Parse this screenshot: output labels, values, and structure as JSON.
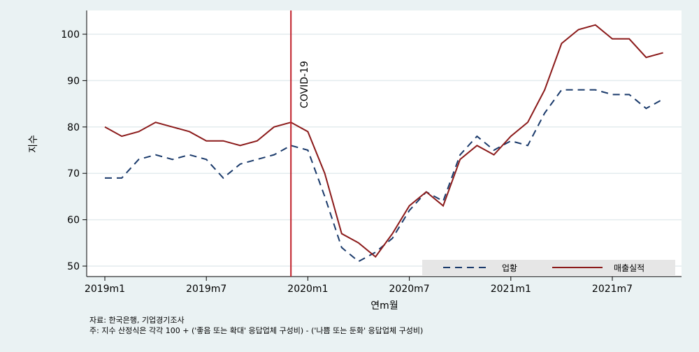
{
  "chart_data": {
    "type": "line",
    "xlabel": "연m월",
    "ylabel": "지수",
    "ylim": [
      48,
      104
    ],
    "yticks": [
      50,
      60,
      70,
      80,
      90,
      100
    ],
    "xtick_labels": [
      "2019m1",
      "2019m7",
      "2020m1",
      "2020m7",
      "2021m1",
      "2021m7"
    ],
    "x": [
      "2019m1",
      "2019m2",
      "2019m3",
      "2019m4",
      "2019m5",
      "2019m6",
      "2019m7",
      "2019m8",
      "2019m9",
      "2019m10",
      "2019m11",
      "2019m12",
      "2020m1",
      "2020m2",
      "2020m3",
      "2020m4",
      "2020m5",
      "2020m6",
      "2020m7",
      "2020m8",
      "2020m9",
      "2020m10",
      "2020m11",
      "2020m12",
      "2021m1",
      "2021m2",
      "2021m3",
      "2021m4",
      "2021m5",
      "2021m6",
      "2021m7",
      "2021m8",
      "2021m9",
      "2021m10"
    ],
    "series": [
      {
        "name": "업황",
        "color": "#1a3a6b",
        "dash": "dashed",
        "values": [
          69,
          69,
          73,
          74,
          73,
          74,
          73,
          69,
          72,
          73,
          74,
          76,
          75,
          65,
          54,
          51,
          53,
          56,
          62,
          66,
          64,
          74,
          78,
          75,
          77,
          76,
          83,
          88,
          88,
          88,
          87,
          87,
          84,
          86
        ]
      },
      {
        "name": "매출실적",
        "color": "#8b1a1a",
        "dash": "solid",
        "values": [
          80,
          78,
          79,
          81,
          80,
          79,
          77,
          77,
          76,
          77,
          80,
          81,
          79,
          70,
          57,
          55,
          52,
          57,
          63,
          66,
          63,
          73,
          76,
          74,
          78,
          81,
          88,
          98,
          101,
          102,
          99,
          99,
          95,
          96
        ]
      }
    ],
    "annotation": {
      "x": "2019m12",
      "label": "COVID-19",
      "color": "#c0202a"
    },
    "grid": true,
    "legend_position": "bottom-right inside"
  },
  "notes": {
    "source": "자료: 한국은행, 기업경기조사",
    "note": "주: 지수 산정식은 각각 100 + ('좋음 또는 확대' 응답업체 구성비) - ('나쁨 또는 둔화' 응답업체 구성비)"
  }
}
